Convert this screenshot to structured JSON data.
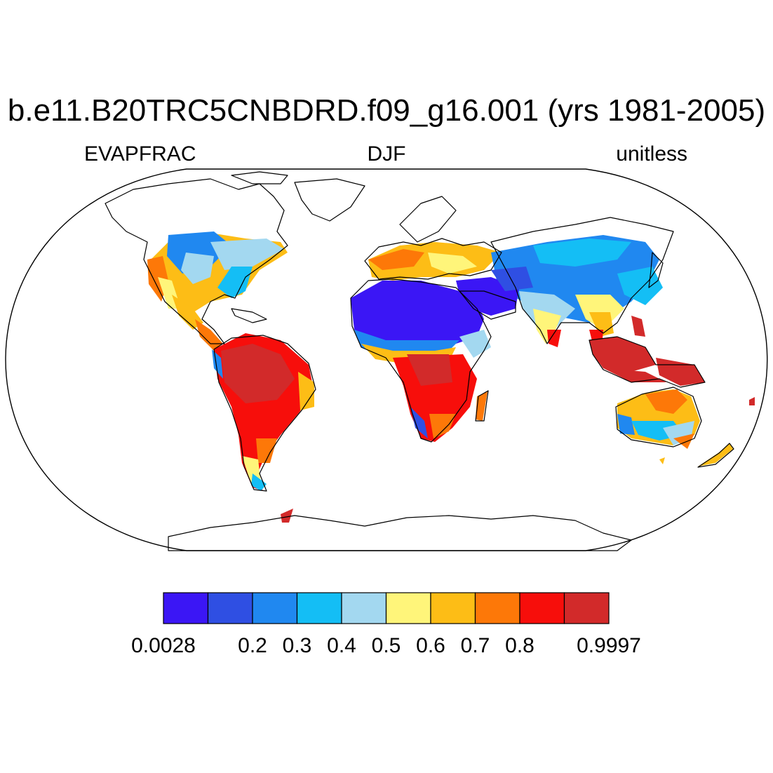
{
  "title": "b.e11.B20TRC5CNBDRD.f09_g16.001 (yrs 1981-2005)",
  "left_label": "EVAPFRAC",
  "center_label": "DJF",
  "right_label": "unitless",
  "colorbar": {
    "colors": [
      "#3b16f5",
      "#2f4fe3",
      "#2088f0",
      "#14bef5",
      "#a3d8f0",
      "#fff57a",
      "#fdbd16",
      "#fd7808",
      "#f70e0b",
      "#d22a2a"
    ],
    "tick_labels": [
      "0.0028",
      "0.2",
      "0.3",
      "0.4",
      "0.5",
      "0.6",
      "0.7",
      "0.8",
      "0.9997"
    ],
    "tick_positions": [
      0,
      2,
      3,
      4,
      5,
      6,
      7,
      8,
      10
    ]
  }
}
